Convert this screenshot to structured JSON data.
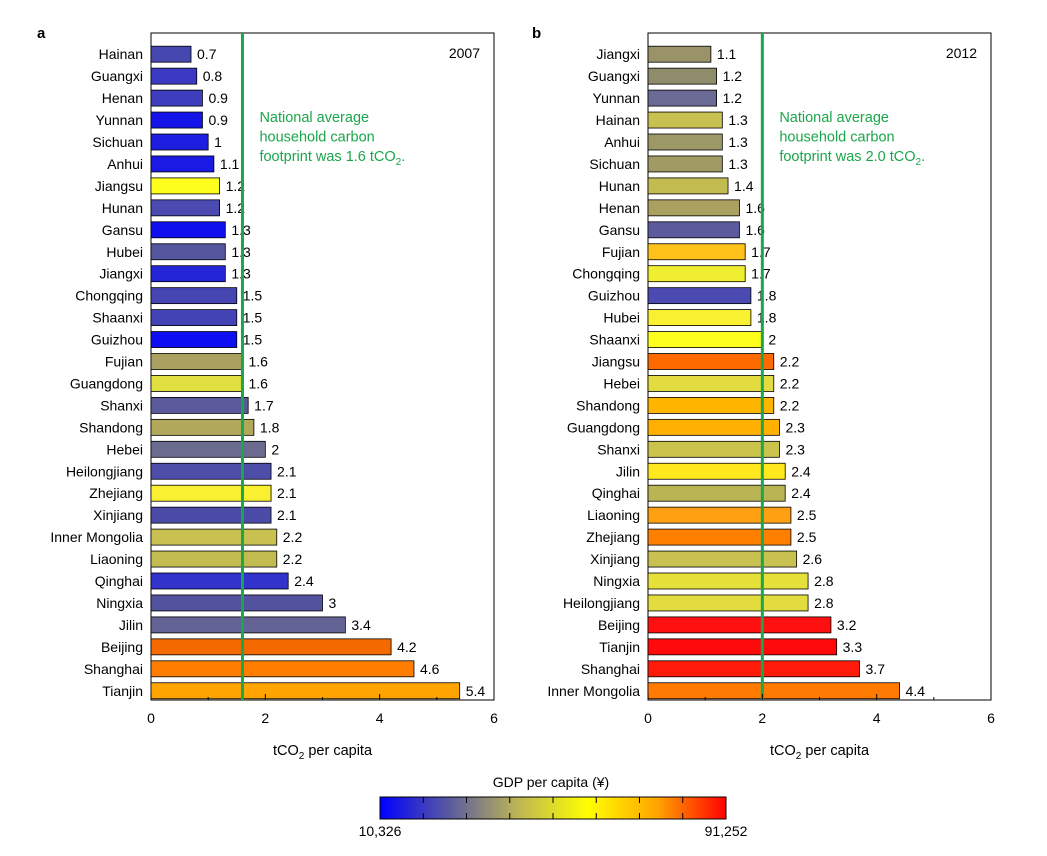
{
  "chart_data": [
    {
      "type": "bar",
      "orientation": "horizontal",
      "panel_letter": "a",
      "year_label": "2007",
      "xlabel_main": "tCO",
      "xlabel_sub": "2",
      "xlabel_rest": " per capita",
      "xlim": [
        0,
        6
      ],
      "xticks": [
        "0",
        "2",
        "4",
        "6"
      ],
      "reference_line": {
        "value": 1.6,
        "color": "#1aa64a"
      },
      "annotation_lines": [
        "National average",
        "household carbon",
        "footprint was 1.6 tCO"
      ],
      "annotation_sub": "2",
      "annotation_end": ".",
      "categories": [
        "Hainan",
        "Guangxi",
        "Henan",
        "Yunnan",
        "Sichuan",
        "Anhui",
        "Jiangsu",
        "Hunan",
        "Gansu",
        "Hubei",
        "Jiangxi",
        "Chongqing",
        "Shaanxi",
        "Guizhou",
        "Fujian",
        "Guangdong",
        "Shanxi",
        "Shandong",
        "Hebei",
        "Heilongjiang",
        "Zhejiang",
        "Xinjiang",
        "Inner Mongolia",
        "Liaoning",
        "Qinghai",
        "Ningxia",
        "Jilin",
        "Beijing",
        "Shanghai",
        "Tianjin"
      ],
      "values": [
        0.7,
        0.8,
        0.9,
        0.9,
        1,
        1.1,
        1.2,
        1.2,
        1.3,
        1.3,
        1.3,
        1.5,
        1.5,
        1.5,
        1.6,
        1.6,
        1.7,
        1.8,
        2,
        2.1,
        2.1,
        2.1,
        2.2,
        2.2,
        2.4,
        3,
        3.4,
        4.2,
        4.6,
        5.4
      ],
      "value_labels": [
        "0.7",
        "0.8",
        "0.9",
        "0.9",
        "1",
        "1.1",
        "1.2",
        "1.2",
        "1.3",
        "1.3",
        "1.3",
        "1.5",
        "1.5",
        "1.5",
        "1.6",
        "1.6",
        "1.7",
        "1.8",
        "2",
        "2.1",
        "2.1",
        "2.1",
        "2.2",
        "2.2",
        "2.4",
        "3",
        "3.4",
        "4.2",
        "4.6",
        "5.4"
      ],
      "colors": [
        "#4747b0",
        "#3a3ac4",
        "#3d3dbd",
        "#1414e8",
        "#1e1ee0",
        "#1a1ae4",
        "#ffff1e",
        "#4a4ab0",
        "#1010ef",
        "#55559e",
        "#2525d8",
        "#4646b2",
        "#4343b6",
        "#0e0ef2",
        "#aaa060",
        "#e0e040",
        "#5a5a9c",
        "#b2a85a",
        "#6b6b90",
        "#4e4ea8",
        "#f8f030",
        "#4c4ca8",
        "#c8c050",
        "#c2bc50",
        "#3232cc",
        "#52529e",
        "#636396",
        "#f46a00",
        "#ff7d00",
        "#ffa400"
      ]
    },
    {
      "type": "bar",
      "orientation": "horizontal",
      "panel_letter": "b",
      "year_label": "2012",
      "xlabel_main": "tCO",
      "xlabel_sub": "2",
      "xlabel_rest": " per capita",
      "xlim": [
        0,
        6
      ],
      "xticks": [
        "0",
        "2",
        "4",
        "6"
      ],
      "reference_line": {
        "value": 2.0,
        "color": "#1aa64a"
      },
      "annotation_lines": [
        "National average",
        "household carbon",
        "footprint was 2.0 tCO"
      ],
      "annotation_sub": "2",
      "annotation_end": ".",
      "categories": [
        "Jiangxi",
        "Guangxi",
        "Yunnan",
        "Hainan",
        "Anhui",
        "Sichuan",
        "Hunan",
        "Henan",
        "Gansu",
        "Fujian",
        "Chongqing",
        "Guizhou",
        "Hubei",
        "Shaanxi",
        "Jiangsu",
        "Hebei",
        "Shandong",
        "Guangdong",
        "Shanxi",
        "Jilin",
        "Qinghai",
        "Liaoning",
        "Zhejiang",
        "Xinjiang",
        "Ningxia",
        "Heilongjiang",
        "Beijing",
        "Tianjin",
        "Shanghai",
        "Inner Mongolia"
      ],
      "values": [
        1.1,
        1.2,
        1.2,
        1.3,
        1.3,
        1.3,
        1.4,
        1.6,
        1.6,
        1.7,
        1.7,
        1.8,
        1.8,
        2,
        2.2,
        2.2,
        2.2,
        2.3,
        2.3,
        2.4,
        2.4,
        2.5,
        2.5,
        2.6,
        2.8,
        2.8,
        3.2,
        3.3,
        3.7,
        4.4
      ],
      "value_labels": [
        "1.1",
        "1.2",
        "1.2",
        "1.3",
        "1.3",
        "1.3",
        "1.4",
        "1.6",
        "1.6",
        "1.7",
        "1.7",
        "1.8",
        "1.8",
        "2",
        "2.2",
        "2.2",
        "2.2",
        "2.3",
        "2.3",
        "2.4",
        "2.4",
        "2.5",
        "2.5",
        "2.6",
        "2.8",
        "2.8",
        "3.2",
        "3.3",
        "3.7",
        "4.4"
      ],
      "colors": [
        "#9a9268",
        "#8f8c6c",
        "#6a6a94",
        "#c8c050",
        "#9c9868",
        "#a09a64",
        "#c2bc50",
        "#aaa060",
        "#5a5a9c",
        "#ffc21a",
        "#f0ee30",
        "#4a4ab0",
        "#f8f030",
        "#ffff1e",
        "#ff6a00",
        "#e2dc40",
        "#ffb400",
        "#ffb000",
        "#cac44c",
        "#ffe81e",
        "#bab454",
        "#ffa012",
        "#ff8000",
        "#c8c050",
        "#e6e03a",
        "#e2dc3e",
        "#ff1010",
        "#ff0a0a",
        "#ff1a0a",
        "#ff7a00"
      ]
    }
  ],
  "colorbar": {
    "title": "GDP per capita (¥)",
    "min_label": "10,326",
    "max_label": "91,252",
    "stops": [
      "#0000ff",
      "#5a5aa0",
      "#bdb653",
      "#ffff00",
      "#ffa500",
      "#ff0000"
    ]
  }
}
